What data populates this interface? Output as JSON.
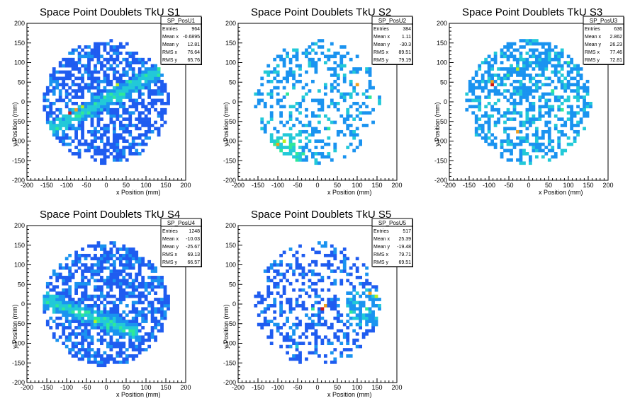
{
  "palette": [
    "#3a0fd6",
    "#1f5cf0",
    "#1a93f0",
    "#22c9d8",
    "#2ee89a",
    "#b8f020",
    "#f0a020",
    "#d01818"
  ],
  "chart_data": [
    {
      "type": "heatmap",
      "title": "Space Point Doublets TkU S1",
      "xlabel": "x Position (mm)",
      "ylabel": "y Position (mm)",
      "xlim": [
        -200,
        200
      ],
      "ylim": [
        -200,
        200
      ],
      "xticks": [
        "-200",
        "-150",
        "-100",
        "-50",
        "0",
        "50",
        "100",
        "150",
        "200"
      ],
      "yticks": [
        "-200",
        "-150",
        "-100",
        "-50",
        "0",
        "50",
        "100",
        "150",
        "200"
      ],
      "stats": {
        "name": "SP_PosU1",
        "rows": [
          {
            "label": "Entries",
            "value": "964"
          },
          {
            "label": "Mean x",
            "value": "-0.6895"
          },
          {
            "label": "Mean y",
            "value": "12.81"
          },
          {
            "label": "RMS x",
            "value": "76.64"
          },
          {
            "label": "RMS y",
            "value": "65.76"
          }
        ]
      },
      "distribution": {
        "occupancy": 0.58,
        "base_level": 1,
        "band": "diagonal-up",
        "cells": [
          [
            -95,
            -30,
            7
          ],
          [
            -80,
            -20,
            6
          ],
          [
            -60,
            -15,
            5
          ],
          [
            30,
            40,
            5
          ],
          [
            60,
            55,
            4
          ],
          [
            100,
            70,
            4
          ],
          [
            -30,
            10,
            3
          ],
          [
            0,
            20,
            3
          ]
        ]
      }
    },
    {
      "type": "heatmap",
      "title": "Space Point Doublets TkU S2",
      "xlabel": "x Position (mm)",
      "ylabel": "y Position (mm)",
      "xlim": [
        -200,
        200
      ],
      "ylim": [
        -200,
        200
      ],
      "xticks": [
        "-200",
        "-150",
        "-100",
        "-50",
        "0",
        "50",
        "100",
        "150",
        "200"
      ],
      "yticks": [
        "-200",
        "-150",
        "-100",
        "-50",
        "0",
        "50",
        "100",
        "150",
        "200"
      ],
      "stats": {
        "name": "SP_PosU2",
        "rows": [
          {
            "label": "Entries",
            "value": "384"
          },
          {
            "label": "Mean x",
            "value": "1.11"
          },
          {
            "label": "Mean y",
            "value": "-30.3"
          },
          {
            "label": "RMS x",
            "value": "89.51"
          },
          {
            "label": "RMS y",
            "value": "79.19"
          }
        ]
      },
      "distribution": {
        "occupancy": 0.3,
        "base_level": 2,
        "band": "bottom-left",
        "cells": [
          [
            -100,
            -110,
            6
          ],
          [
            -85,
            -100,
            5
          ],
          [
            -70,
            -115,
            4
          ],
          [
            -40,
            -130,
            4
          ],
          [
            100,
            40,
            6
          ],
          [
            130,
            10,
            4
          ],
          [
            -80,
            20,
            4
          ],
          [
            30,
            -70,
            4
          ]
        ]
      }
    },
    {
      "type": "heatmap",
      "title": "Space Point Doublets TkU S3",
      "xlabel": "x Position (mm)",
      "ylabel": "y Position (mm)",
      "xlim": [
        -200,
        200
      ],
      "ylim": [
        -200,
        200
      ],
      "xticks": [
        "-200",
        "-150",
        "-100",
        "-50",
        "0",
        "50",
        "100",
        "150",
        "200"
      ],
      "yticks": [
        "-200",
        "-150",
        "-100",
        "-50",
        "0",
        "50",
        "100",
        "150",
        "200"
      ],
      "stats": {
        "name": "SP_PosU3",
        "rows": [
          {
            "label": "Entries",
            "value": "636"
          },
          {
            "label": "Mean x",
            "value": "2.862"
          },
          {
            "label": "Mean y",
            "value": "26.23"
          },
          {
            "label": "RMS x",
            "value": "77.46"
          },
          {
            "label": "RMS y",
            "value": "72.81"
          }
        ]
      },
      "distribution": {
        "occupancy": 0.42,
        "base_level": 2,
        "band": "upper",
        "cells": [
          [
            -95,
            40,
            7
          ],
          [
            -90,
            50,
            6
          ],
          [
            -25,
            80,
            5
          ],
          [
            -50,
            70,
            4
          ],
          [
            60,
            30,
            4
          ],
          [
            80,
            -20,
            4
          ],
          [
            -30,
            -80,
            6
          ],
          [
            100,
            100,
            4
          ]
        ]
      }
    },
    {
      "type": "heatmap",
      "title": "Space Point Doublets TkU S4",
      "xlabel": "x Position (mm)",
      "ylabel": "y Position (mm)",
      "xlim": [
        -200,
        200
      ],
      "ylim": [
        -200,
        200
      ],
      "xticks": [
        "-200",
        "-150",
        "-100",
        "-50",
        "0",
        "50",
        "100",
        "150",
        "200"
      ],
      "yticks": [
        "-200",
        "-150",
        "-100",
        "-50",
        "0",
        "50",
        "100",
        "150",
        "200"
      ],
      "stats": {
        "name": "SP_PosU4",
        "rows": [
          {
            "label": "Entries",
            "value": "1248"
          },
          {
            "label": "Mean x",
            "value": "-10.03"
          },
          {
            "label": "Mean y",
            "value": "-25.67"
          },
          {
            "label": "RMS x",
            "value": "69.13"
          },
          {
            "label": "RMS y",
            "value": "66.57"
          }
        ]
      },
      "distribution": {
        "occupancy": 0.62,
        "base_level": 1,
        "band": "diagonal-down",
        "cells": [
          [
            -85,
            -20,
            4
          ],
          [
            -60,
            -30,
            4
          ],
          [
            -30,
            -45,
            5
          ],
          [
            0,
            -60,
            4
          ],
          [
            40,
            -70,
            4
          ],
          [
            -95,
            -10,
            3
          ],
          [
            60,
            -80,
            3
          ]
        ]
      }
    },
    {
      "type": "heatmap",
      "title": "Space Point Doublets TkU S5",
      "xlabel": "x Position (mm)",
      "ylabel": "y Position (mm)",
      "xlim": [
        -200,
        200
      ],
      "ylim": [
        -200,
        200
      ],
      "xticks": [
        "-200",
        "-150",
        "-100",
        "-50",
        "0",
        "50",
        "100",
        "150",
        "200"
      ],
      "yticks": [
        "-200",
        "-150",
        "-100",
        "-50",
        "0",
        "50",
        "100",
        "150",
        "200"
      ],
      "stats": {
        "name": "SP_PosU5",
        "rows": [
          {
            "label": "Entries",
            "value": "517"
          },
          {
            "label": "Mean x",
            "value": "25.39"
          },
          {
            "label": "Mean y",
            "value": "-19.48"
          },
          {
            "label": "RMS x",
            "value": "79.71"
          },
          {
            "label": "RMS y",
            "value": "69.51"
          }
        ]
      },
      "distribution": {
        "occupancy": 0.32,
        "base_level": 1,
        "band": "right",
        "cells": [
          [
            10,
            -10,
            7
          ],
          [
            20,
            -5,
            6
          ],
          [
            -10,
            -15,
            4
          ],
          [
            80,
            -20,
            4
          ],
          [
            130,
            30,
            6
          ],
          [
            150,
            20,
            5
          ],
          [
            120,
            -10,
            4
          ],
          [
            -50,
            -110,
            3
          ]
        ]
      }
    }
  ]
}
